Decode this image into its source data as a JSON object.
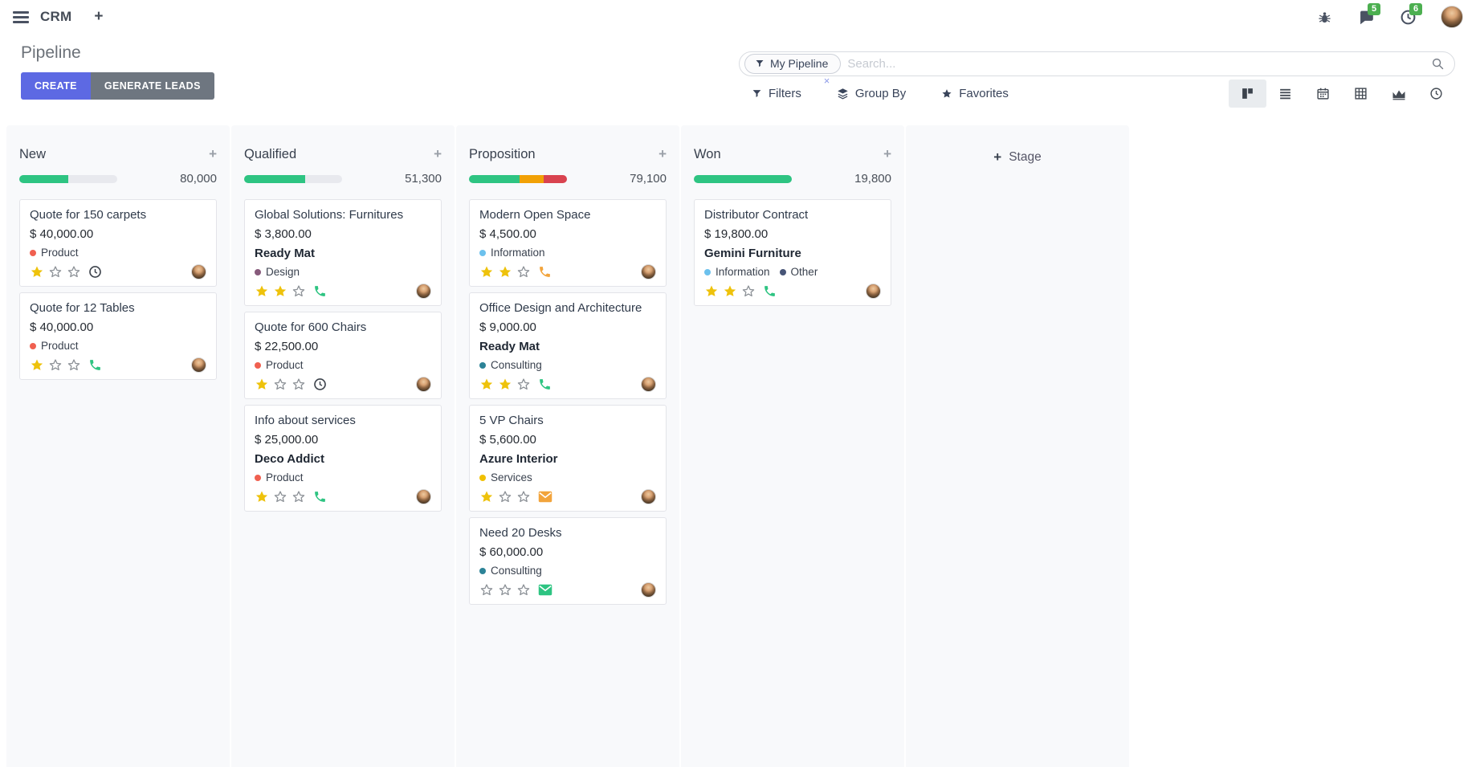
{
  "nav": {
    "app": "CRM",
    "messages_badge": "5",
    "activities_badge": "6"
  },
  "panel": {
    "title": "Pipeline",
    "create_label": "CREATE",
    "generate_label": "GENERATE LEADS",
    "facet_label": "My Pipeline",
    "facet_remove": "×",
    "search_placeholder": "Search...",
    "filters_label": "Filters",
    "group_by_label": "Group By",
    "favorites_label": "Favorites"
  },
  "board": {
    "add_stage_label": "Stage",
    "colors": {
      "green": "#2EC482",
      "orange": "#F1A106",
      "red": "#D9434F",
      "track": "#E8E9EE",
      "star": "#EEC20B"
    },
    "columns": [
      {
        "name": "New",
        "total": "80,000",
        "bar": [
          {
            "color": "#2EC482",
            "pct": 50
          }
        ],
        "cards": [
          {
            "title": "Quote for 150 carpets",
            "amount": "$ 40,000.00",
            "tags": [
              {
                "label": "Product",
                "color": "#F06050"
              }
            ],
            "stars": 1,
            "activity": {
              "icon": "clock-icon",
              "color": "#3D434C"
            }
          },
          {
            "title": "Quote for 12 Tables",
            "amount": "$ 40,000.00",
            "tags": [
              {
                "label": "Product",
                "color": "#F06050"
              }
            ],
            "stars": 1,
            "activity": {
              "icon": "phone-icon",
              "color": "#2EC482"
            }
          }
        ]
      },
      {
        "name": "Qualified",
        "total": "51,300",
        "bar": [
          {
            "color": "#2EC482",
            "pct": 62
          }
        ],
        "cards": [
          {
            "title": "Global Solutions: Furnitures",
            "amount": "$ 3,800.00",
            "partner": "Ready Mat",
            "tags": [
              {
                "label": "Design",
                "color": "#875A7B"
              }
            ],
            "stars": 2,
            "activity": {
              "icon": "phone-icon",
              "color": "#2EC482"
            }
          },
          {
            "title": "Quote for 600 Chairs",
            "amount": "$ 22,500.00",
            "tags": [
              {
                "label": "Product",
                "color": "#F06050"
              }
            ],
            "stars": 1,
            "activity": {
              "icon": "clock-icon",
              "color": "#3D434C"
            }
          },
          {
            "title": "Info about services",
            "amount": "$ 25,000.00",
            "partner": "Deco Addict",
            "tags": [
              {
                "label": "Product",
                "color": "#F06050"
              }
            ],
            "stars": 1,
            "activity": {
              "icon": "phone-icon",
              "color": "#2EC482"
            }
          }
        ]
      },
      {
        "name": "Proposition",
        "total": "79,100",
        "bar": [
          {
            "color": "#2EC482",
            "pct": 52
          },
          {
            "color": "#F1A106",
            "pct": 24
          },
          {
            "color": "#D9434F",
            "pct": 24
          }
        ],
        "cards": [
          {
            "title": "Modern Open Space",
            "amount": "$ 4,500.00",
            "tags": [
              {
                "label": "Information",
                "color": "#6CC1ED"
              }
            ],
            "stars": 2,
            "activity": {
              "icon": "phone-icon",
              "color": "#F2A43C"
            }
          },
          {
            "title": "Office Design and Architecture",
            "amount": "$ 9,000.00",
            "partner": "Ready Mat",
            "tags": [
              {
                "label": "Consulting",
                "color": "#2C8397"
              }
            ],
            "stars": 2,
            "activity": {
              "icon": "phone-icon",
              "color": "#2EC482"
            }
          },
          {
            "title": "5 VP Chairs",
            "amount": "$ 5,600.00",
            "partner": "Azure Interior",
            "tags": [
              {
                "label": "Services",
                "color": "#F0C000"
              }
            ],
            "stars": 1,
            "activity": {
              "icon": "envelope-icon",
              "color": "#F2A43C"
            }
          },
          {
            "title": "Need 20 Desks",
            "amount": "$ 60,000.00",
            "tags": [
              {
                "label": "Consulting",
                "color": "#2C8397"
              }
            ],
            "stars": 0,
            "activity": {
              "icon": "envelope-icon",
              "color": "#2EC482"
            }
          }
        ]
      },
      {
        "name": "Won",
        "total": "19,800",
        "bar": [
          {
            "color": "#2EC482",
            "pct": 100
          }
        ],
        "cards": [
          {
            "title": "Distributor Contract",
            "amount": "$ 19,800.00",
            "partner": "Gemini Furniture",
            "tags": [
              {
                "label": "Information",
                "color": "#6CC1ED"
              },
              {
                "label": "Other",
                "color": "#475577"
              }
            ],
            "stars": 2,
            "activity": {
              "icon": "phone-icon",
              "color": "#2EC482"
            }
          }
        ]
      }
    ]
  }
}
